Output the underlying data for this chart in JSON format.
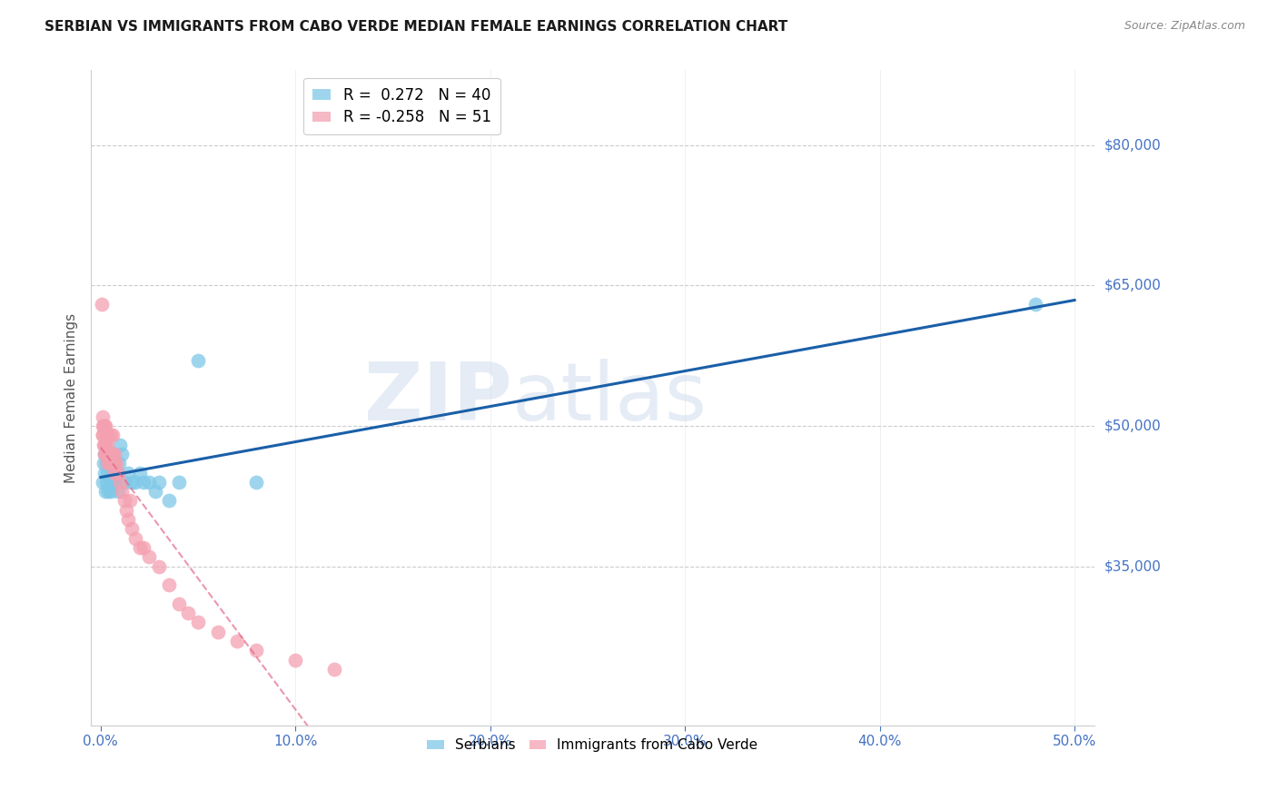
{
  "title": "SERBIAN VS IMMIGRANTS FROM CABO VERDE MEDIAN FEMALE EARNINGS CORRELATION CHART",
  "source": "Source: ZipAtlas.com",
  "xlabel_ticks": [
    "0.0%",
    "10.0%",
    "20.0%",
    "30.0%",
    "40.0%",
    "50.0%"
  ],
  "xlabel_vals": [
    0.0,
    10.0,
    20.0,
    30.0,
    40.0,
    50.0
  ],
  "ylabel": "Median Female Earnings",
  "xlim": [
    -0.5,
    51.0
  ],
  "ylim": [
    18000,
    88000
  ],
  "watermark_line1": "ZIP",
  "watermark_line2": "atlas",
  "legend_serbian_R": "0.272",
  "legend_serbian_N": "40",
  "legend_cabo_verde_R": "-0.258",
  "legend_cabo_verde_N": "51",
  "serbian_color": "#7ec8e8",
  "cabo_verde_color": "#f4a0b0",
  "trendline_serbian_color": "#1a5fa8",
  "trendline_cabo_verde_color": "#e06080",
  "axis_color": "#4472c4",
  "grid_color": "#cccccc",
  "serbian_scatter_x": [
    0.1,
    0.15,
    0.2,
    0.2,
    0.25,
    0.3,
    0.3,
    0.35,
    0.4,
    0.4,
    0.45,
    0.5,
    0.5,
    0.55,
    0.6,
    0.6,
    0.65,
    0.7,
    0.7,
    0.75,
    0.8,
    0.85,
    0.9,
    0.95,
    1.0,
    1.1,
    1.2,
    1.4,
    1.6,
    1.8,
    2.0,
    2.2,
    2.5,
    2.8,
    3.0,
    3.5,
    4.0,
    5.0,
    8.0,
    48.0
  ],
  "serbian_scatter_y": [
    44000,
    46000,
    45000,
    47000,
    43000,
    44000,
    46000,
    45000,
    43000,
    47000,
    44000,
    43000,
    46000,
    45000,
    44000,
    47000,
    45000,
    44000,
    46000,
    45000,
    44000,
    45000,
    43000,
    46000,
    48000,
    47000,
    44000,
    45000,
    44000,
    44000,
    45000,
    44000,
    44000,
    43000,
    44000,
    42000,
    44000,
    57000,
    44000,
    63000
  ],
  "cabo_verde_scatter_x": [
    0.05,
    0.08,
    0.1,
    0.1,
    0.12,
    0.15,
    0.15,
    0.18,
    0.2,
    0.2,
    0.22,
    0.25,
    0.25,
    0.3,
    0.3,
    0.35,
    0.35,
    0.4,
    0.4,
    0.45,
    0.5,
    0.5,
    0.55,
    0.6,
    0.6,
    0.65,
    0.7,
    0.7,
    0.8,
    0.9,
    1.0,
    1.1,
    1.2,
    1.3,
    1.4,
    1.5,
    1.6,
    1.8,
    2.0,
    2.2,
    2.5,
    3.0,
    3.5,
    4.0,
    4.5,
    5.0,
    6.0,
    7.0,
    8.0,
    10.0,
    12.0
  ],
  "cabo_verde_scatter_y": [
    63000,
    50000,
    49000,
    51000,
    49000,
    48000,
    50000,
    47000,
    48000,
    50000,
    47000,
    48000,
    50000,
    47000,
    49000,
    46000,
    48000,
    47000,
    49000,
    46000,
    47000,
    49000,
    46000,
    47000,
    49000,
    46000,
    45000,
    47000,
    46000,
    45000,
    44000,
    43000,
    42000,
    41000,
    40000,
    42000,
    39000,
    38000,
    37000,
    37000,
    36000,
    35000,
    33000,
    31000,
    30000,
    29000,
    28000,
    27000,
    26000,
    25000,
    24000
  ]
}
